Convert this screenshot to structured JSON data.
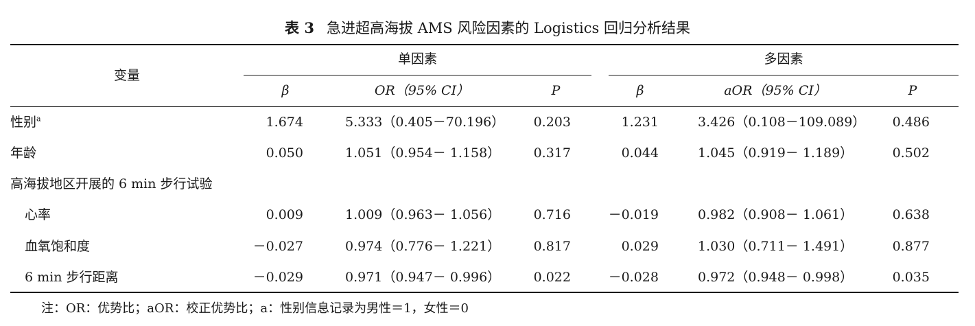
{
  "table": {
    "number": "表 3",
    "title": "急进超高海拔 AMS 风险因素的 Logistics 回归分析结果",
    "header": {
      "variable": "变量",
      "univariate": "单因素",
      "multivariate": "多因素",
      "beta": "β",
      "or_ci": "OR（95% CI）",
      "p": "P",
      "beta2": "β",
      "aor_ci": "aOR（95% CI）",
      "p2": "P"
    },
    "rows": [
      {
        "label": "性别",
        "sup": "a",
        "b1": "1.674",
        "or1": "5.333（0.405－70.196）",
        "p1": "0.203",
        "b2": "1.231",
        "or2": "3.426（0.108－109.089）",
        "p2": "0.486"
      },
      {
        "label": "年龄",
        "b1": "0.050",
        "or1": "1.051（0.954－ 1.158）",
        "p1": "0.317",
        "b2": "0.044",
        "or2": "1.045（0.919－ 1.189）",
        "p2": "0.502"
      },
      {
        "label": "高海拔地区开展的 6 min 步行试验"
      },
      {
        "label": "心率",
        "b1": "0.009",
        "or1": "1.009（0.963－ 1.056）",
        "p1": "0.716",
        "b2": "－0.019",
        "or2": "0.982（0.908－ 1.061）",
        "p2": "0.638"
      },
      {
        "label": "血氧饱和度",
        "b1": "－0.027",
        "or1": "0.974（0.776－ 1.221）",
        "p1": "0.817",
        "b2": "0.029",
        "or2": "1.030（0.711－ 1.491）",
        "p2": "0.877"
      },
      {
        "label": "6 min 步行距离",
        "b1": "－0.029",
        "or1": "0.971（0.947－ 0.996）",
        "p1": "0.022",
        "b2": "－0.028",
        "or2": "0.972（0.948－ 0.998）",
        "p2": "0.035"
      }
    ],
    "note": "注：OR：优势比；aOR：校正优势比；a：性别信息记录为男性＝1，女性＝0"
  }
}
